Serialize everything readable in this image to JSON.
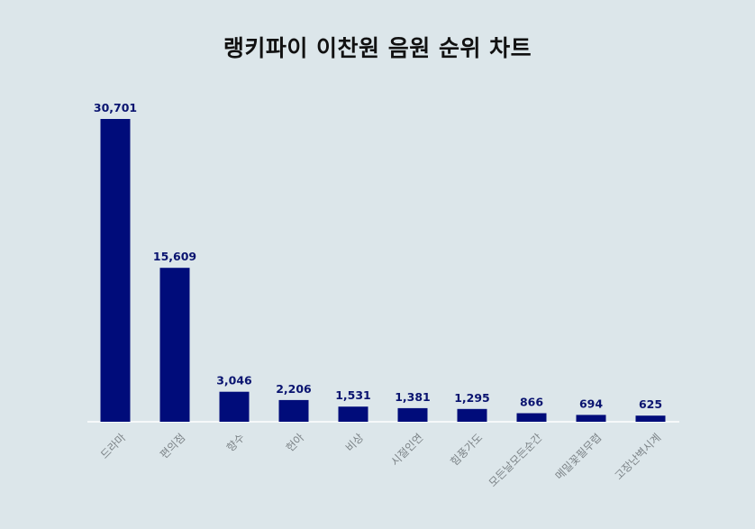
{
  "chart_data": {
    "type": "bar",
    "title": "랭키파이 이찬원 음원 순위 차트",
    "xlabel": "",
    "ylabel": "",
    "categories": [
      "드라마",
      "편의점",
      "향수",
      "헌아",
      "비상",
      "시절인연",
      "힘풍가도",
      "모든날모든순간",
      "메밀꽃필무렵",
      "고장난벽시계"
    ],
    "values": [
      30701,
      15609,
      3046,
      2206,
      1531,
      1381,
      1295,
      866,
      694,
      625
    ],
    "value_labels": [
      "30,701",
      "15,609",
      "3,046",
      "2,206",
      "1,531",
      "1,381",
      "1,295",
      "866",
      "694",
      "625"
    ],
    "ylim": [
      0,
      30701
    ],
    "grid": false,
    "legend": "none",
    "colors": {
      "bar": "#000c7a",
      "value_label": "#0a1470",
      "tick_label": "#7d8488",
      "background": "#dce6ea",
      "baseline": "#ffffff"
    }
  }
}
